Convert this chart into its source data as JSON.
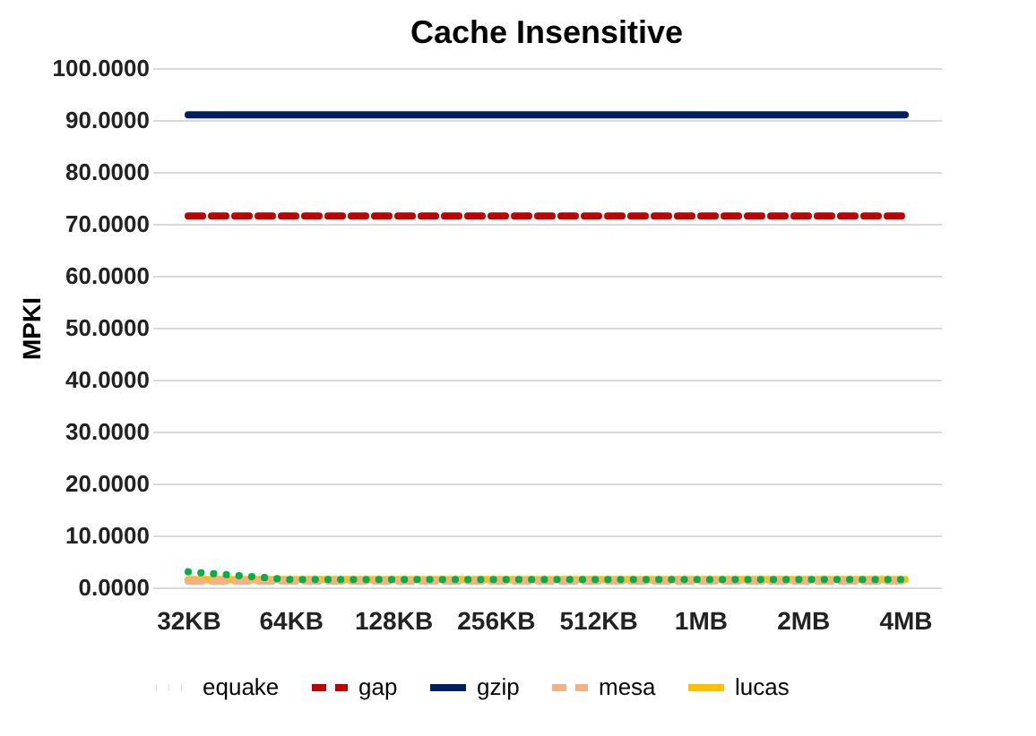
{
  "chart_data": {
    "type": "line",
    "title": "Cache Insensitive",
    "ylabel": "MPKI",
    "categories": [
      "32KB",
      "64KB",
      "128KB",
      "256KB",
      "512KB",
      "1MB",
      "2MB",
      "4MB"
    ],
    "series": [
      {
        "name": "equake",
        "color": "#00b050",
        "line_style": "dotted",
        "values": [
          3.0,
          1.5,
          1.5,
          1.5,
          1.5,
          1.5,
          1.5,
          1.5
        ]
      },
      {
        "name": "gap",
        "color": "#c00000",
        "line_style": "dashed",
        "values": [
          71.5,
          71.5,
          71.5,
          71.5,
          71.5,
          71.5,
          71.5,
          71.5
        ]
      },
      {
        "name": "gzip",
        "color": "#002060",
        "line_style": "solid",
        "values": [
          91,
          91,
          91,
          91,
          91,
          91,
          91,
          91
        ]
      },
      {
        "name": "mesa",
        "color": "#f4b183",
        "line_style": "dashed",
        "values": [
          1.2,
          1.2,
          1.2,
          1.2,
          1.2,
          1.2,
          1.2,
          1.2
        ]
      },
      {
        "name": "lucas",
        "color": "#ffc000",
        "line_style": "solid",
        "values": [
          1.5,
          1.5,
          1.5,
          1.5,
          1.5,
          1.5,
          1.5,
          1.5
        ]
      }
    ],
    "ylim": [
      0,
      100
    ],
    "yticks": [
      {
        "value": 0,
        "label": "0.0000"
      },
      {
        "value": 10,
        "label": "10.0000"
      },
      {
        "value": 20,
        "label": "20.0000"
      },
      {
        "value": 30,
        "label": "30.0000"
      },
      {
        "value": 40,
        "label": "40.0000"
      },
      {
        "value": 50,
        "label": "50.0000"
      },
      {
        "value": 60,
        "label": "60.0000"
      },
      {
        "value": 70,
        "label": "70.0000"
      },
      {
        "value": 80,
        "label": "80.0000"
      },
      {
        "value": 90,
        "label": "90.0000"
      },
      {
        "value": 100,
        "label": "100.0000"
      }
    ],
    "grid": "y",
    "legend": "bottom",
    "marker": "none"
  }
}
